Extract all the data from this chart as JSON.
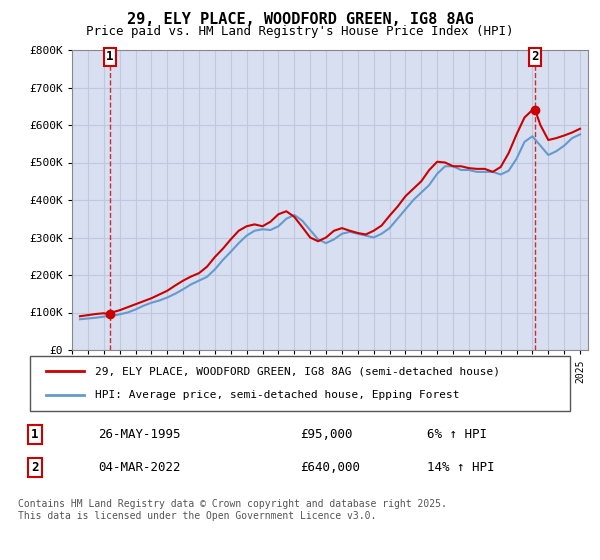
{
  "title": "29, ELY PLACE, WOODFORD GREEN, IG8 8AG",
  "subtitle": "Price paid vs. HM Land Registry's House Price Index (HPI)",
  "ylim": [
    0,
    800000
  ],
  "yticks": [
    0,
    100000,
    200000,
    300000,
    400000,
    500000,
    600000,
    700000,
    800000
  ],
  "ytick_labels": [
    "£0",
    "£100K",
    "£200K",
    "£300K",
    "£400K",
    "£500K",
    "£600K",
    "£700K",
    "£800K"
  ],
  "xlim_start": 1993.0,
  "xlim_end": 2025.5,
  "xtick_years": [
    1993,
    1994,
    1995,
    1996,
    1997,
    1998,
    1999,
    2000,
    2001,
    2002,
    2003,
    2004,
    2005,
    2006,
    2007,
    2008,
    2009,
    2010,
    2011,
    2012,
    2013,
    2014,
    2015,
    2016,
    2017,
    2018,
    2019,
    2020,
    2021,
    2022,
    2023,
    2024,
    2025
  ],
  "background_color": "#ffffff",
  "plot_bg_color": "#f0f4ff",
  "hatch_color": "#d8dff0",
  "grid_color": "#c0c8e0",
  "red_line_color": "#cc0000",
  "blue_line_color": "#6699cc",
  "annotation_box_color": "#cc0000",
  "legend_box_color": "#000000",
  "sale1_x": 1995.4,
  "sale1_y": 95000,
  "sale1_label": "1",
  "sale2_x": 2022.17,
  "sale2_y": 640000,
  "sale2_label": "2",
  "legend1_text": "29, ELY PLACE, WOODFORD GREEN, IG8 8AG (semi-detached house)",
  "legend2_text": "HPI: Average price, semi-detached house, Epping Forest",
  "table_row1": "1    26-MAY-1995              £95,000         6% ↑ HPI",
  "table_row2": "2    04-MAR-2022            £640,000       14% ↑ HPI",
  "footer": "Contains HM Land Registry data © Crown copyright and database right 2025.\nThis data is licensed under the Open Government Licence v3.0.",
  "hpi_data": {
    "years": [
      1993.5,
      1994,
      1994.5,
      1995,
      1995.5,
      1996,
      1996.5,
      1997,
      1997.5,
      1998,
      1998.5,
      1999,
      1999.5,
      2000,
      2000.5,
      2001,
      2001.5,
      2002,
      2002.5,
      2003,
      2003.5,
      2004,
      2004.5,
      2005,
      2005.5,
      2006,
      2006.5,
      2007,
      2007.5,
      2008,
      2008.5,
      2009,
      2009.5,
      2010,
      2010.5,
      2011,
      2011.5,
      2012,
      2012.5,
      2013,
      2013.5,
      2014,
      2014.5,
      2015,
      2015.5,
      2016,
      2016.5,
      2017,
      2017.5,
      2018,
      2018.5,
      2019,
      2019.5,
      2020,
      2020.5,
      2021,
      2021.5,
      2022,
      2022.5,
      2023,
      2023.5,
      2024,
      2024.5,
      2025
    ],
    "values": [
      82000,
      84000,
      86000,
      89000,
      91000,
      95000,
      100000,
      108000,
      118000,
      126000,
      132000,
      140000,
      150000,
      162000,
      175000,
      185000,
      195000,
      215000,
      240000,
      262000,
      285000,
      305000,
      318000,
      322000,
      320000,
      330000,
      350000,
      360000,
      345000,
      320000,
      295000,
      285000,
      295000,
      310000,
      315000,
      310000,
      305000,
      300000,
      310000,
      325000,
      350000,
      375000,
      400000,
      420000,
      440000,
      470000,
      490000,
      490000,
      480000,
      480000,
      475000,
      475000,
      475000,
      468000,
      478000,
      510000,
      555000,
      570000,
      545000,
      520000,
      530000,
      545000,
      565000,
      575000
    ]
  },
  "price_data": {
    "years": [
      1993.5,
      1994,
      1994.5,
      1995,
      1995.4,
      1995.5,
      1996,
      1996.5,
      1997,
      1997.5,
      1998,
      1998.5,
      1999,
      1999.5,
      2000,
      2000.5,
      2001,
      2001.5,
      2002,
      2002.5,
      2003,
      2003.5,
      2004,
      2004.5,
      2005,
      2005.5,
      2006,
      2006.5,
      2007,
      2007.5,
      2008,
      2008.5,
      2009,
      2009.5,
      2010,
      2010.5,
      2011,
      2011.5,
      2012,
      2012.5,
      2013,
      2013.5,
      2014,
      2014.5,
      2015,
      2015.5,
      2016,
      2016.5,
      2017,
      2017.5,
      2018,
      2018.5,
      2019,
      2019.5,
      2020,
      2020.5,
      2021,
      2021.5,
      2022,
      2022.17,
      2022.5,
      2023,
      2023.5,
      2024,
      2024.5,
      2025
    ],
    "values": [
      90000,
      93000,
      96000,
      98000,
      95000,
      100000,
      106000,
      114000,
      122000,
      130000,
      138000,
      148000,
      158000,
      172000,
      185000,
      196000,
      205000,
      222000,
      248000,
      270000,
      295000,
      318000,
      330000,
      335000,
      330000,
      342000,
      362000,
      370000,
      355000,
      328000,
      300000,
      290000,
      300000,
      318000,
      325000,
      318000,
      312000,
      308000,
      318000,
      332000,
      358000,
      382000,
      410000,
      430000,
      450000,
      480000,
      502000,
      500000,
      490000,
      490000,
      485000,
      483000,
      483000,
      475000,
      488000,
      525000,
      575000,
      620000,
      640000,
      640000,
      600000,
      560000,
      565000,
      572000,
      580000,
      590000
    ]
  }
}
